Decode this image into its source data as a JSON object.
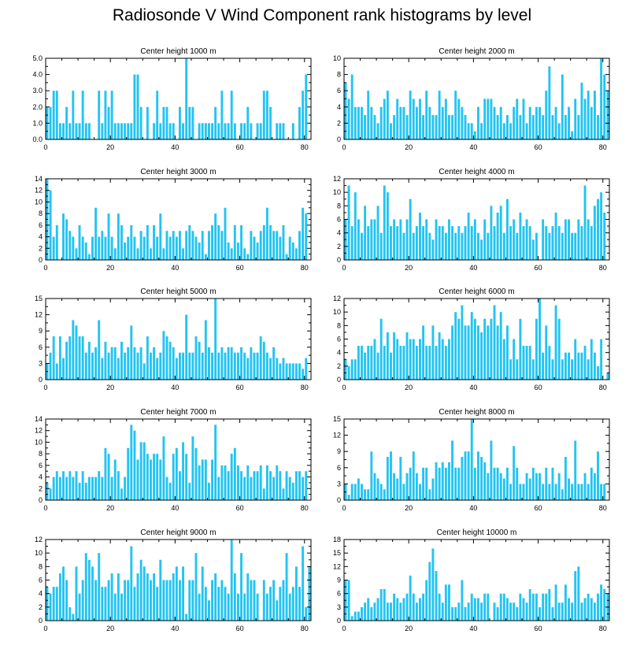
{
  "title": "Radiosonde V Wind Component rank histograms by level",
  "bar_color": "#22c4f2",
  "chart_data": [
    {
      "type": "bar",
      "title": "Center height 1000 m",
      "xlim": [
        0,
        82
      ],
      "ylim": [
        0,
        5
      ],
      "xticks": [
        "0",
        "20",
        "40",
        "60",
        "80"
      ],
      "yticks": [
        "0.0",
        "1.0",
        "2.0",
        "3.0",
        "4.0",
        "5.0"
      ],
      "values": [
        2,
        2,
        3,
        3,
        1,
        1,
        2,
        1,
        3,
        1,
        1,
        3,
        1,
        1,
        0,
        0,
        3,
        1,
        3,
        2,
        3,
        1,
        1,
        1,
        1,
        1,
        1,
        4,
        4,
        2,
        0,
        2,
        0,
        1,
        3,
        1,
        2,
        2,
        1,
        1,
        0,
        2,
        1,
        5,
        2,
        2,
        0,
        1,
        1,
        1,
        1,
        1,
        2,
        1,
        3,
        1,
        1,
        3,
        1,
        0,
        1,
        1,
        2,
        1,
        0,
        1,
        1,
        3,
        3,
        2,
        0,
        1,
        1,
        1,
        0,
        0,
        1,
        0,
        2,
        3,
        4
      ]
    },
    {
      "type": "bar",
      "title": "Center height 2000 m",
      "xlim": [
        0,
        82
      ],
      "ylim": [
        0,
        10
      ],
      "xticks": [
        "0",
        "20",
        "40",
        "60",
        "80"
      ],
      "yticks": [
        "0",
        "2",
        "4",
        "6",
        "8",
        "10"
      ],
      "values": [
        7,
        5,
        8,
        4,
        4,
        4,
        3,
        6,
        4,
        3,
        2,
        4,
        5,
        6,
        2,
        3,
        5,
        4,
        4,
        3,
        6,
        5,
        4,
        5,
        3,
        6,
        4,
        3,
        3,
        6,
        4,
        5,
        3,
        3,
        6,
        5,
        4,
        3,
        2,
        2,
        1,
        4,
        2,
        5,
        5,
        5,
        4,
        3,
        4,
        2,
        3,
        2,
        4,
        5,
        3,
        5,
        2,
        4,
        3,
        4,
        4,
        3,
        6,
        9,
        3,
        4,
        2,
        8,
        3,
        4,
        1,
        5,
        3,
        7,
        5,
        6,
        4,
        6,
        3,
        10,
        8,
        6
      ]
    },
    {
      "type": "bar",
      "title": "Center height 3000 m",
      "xlim": [
        0,
        82
      ],
      "ylim": [
        0,
        14
      ],
      "xticks": [
        "0",
        "20",
        "40",
        "60",
        "80"
      ],
      "yticks": [
        "0",
        "2",
        "4",
        "6",
        "8",
        "10",
        "12",
        "14"
      ],
      "values": [
        14,
        12,
        4,
        6,
        0,
        8,
        7,
        5,
        4,
        2,
        6,
        4,
        3,
        1,
        4,
        9,
        4,
        5,
        4,
        8,
        4,
        2,
        8,
        6,
        3,
        4,
        6,
        4,
        2,
        5,
        4,
        6,
        2,
        6,
        4,
        8,
        2,
        5,
        4,
        5,
        4,
        5,
        2,
        5,
        6,
        5,
        4,
        3,
        5,
        1,
        5,
        6,
        8,
        6,
        5,
        9,
        3,
        2,
        6,
        3,
        6,
        2,
        1,
        5,
        4,
        3,
        5,
        6,
        9,
        6,
        5,
        5,
        4,
        6,
        1,
        4,
        3,
        2,
        5,
        9,
        8
      ]
    },
    {
      "type": "bar",
      "title": "Center height 4000 m",
      "xlim": [
        0,
        82
      ],
      "ylim": [
        0,
        12
      ],
      "xticks": [
        "0",
        "20",
        "40",
        "60",
        "80"
      ],
      "yticks": [
        "0",
        "2",
        "4",
        "6",
        "8",
        "10",
        "12"
      ],
      "values": [
        6,
        11,
        5,
        10,
        6,
        4,
        8,
        5,
        6,
        6,
        8,
        4,
        11,
        10,
        5,
        6,
        5,
        6,
        4,
        6,
        9,
        4,
        5,
        7,
        5,
        6,
        4,
        3,
        6,
        5,
        5,
        4,
        6,
        5,
        4,
        5,
        4,
        5,
        7,
        5,
        6,
        4,
        3,
        6,
        4,
        8,
        5,
        7,
        8,
        4,
        9,
        5,
        6,
        4,
        7,
        5,
        6,
        5,
        3,
        4,
        0,
        6,
        5,
        4,
        5,
        7,
        5,
        4,
        6,
        6,
        4,
        4,
        6,
        5,
        11,
        6,
        5,
        8,
        9,
        10,
        7
      ]
    },
    {
      "type": "bar",
      "title": "Center height 5000 m",
      "xlim": [
        0,
        82
      ],
      "ylim": [
        0,
        15
      ],
      "xticks": [
        "0",
        "20",
        "40",
        "60",
        "80"
      ],
      "yticks": [
        "0",
        "3",
        "6",
        "9",
        "12",
        "15"
      ],
      "values": [
        3,
        5,
        8,
        3,
        8,
        4,
        7,
        8,
        11,
        10,
        8,
        8,
        5,
        7,
        5,
        6,
        11,
        4,
        7,
        5,
        6,
        6,
        4,
        7,
        5,
        6,
        10,
        6,
        5,
        6,
        3,
        8,
        5,
        6,
        4,
        5,
        9,
        8,
        7,
        6,
        4,
        5,
        5,
        12,
        5,
        5,
        8,
        7,
        5,
        11,
        6,
        5,
        15,
        5,
        6,
        5,
        6,
        6,
        5,
        5,
        6,
        5,
        4,
        6,
        5,
        5,
        8,
        7,
        5,
        4,
        6,
        4,
        3,
        4,
        3,
        3,
        3,
        3,
        3,
        2,
        4
      ]
    },
    {
      "type": "bar",
      "title": "Center height 6000 m",
      "xlim": [
        0,
        82
      ],
      "ylim": [
        0,
        12
      ],
      "xticks": [
        "0",
        "20",
        "40",
        "60",
        "80"
      ],
      "yticks": [
        "0",
        "2",
        "4",
        "6",
        "8",
        "10",
        "12"
      ],
      "values": [
        3,
        2,
        3,
        3,
        5,
        5,
        4,
        5,
        5,
        6,
        4,
        9,
        5,
        7,
        4,
        7,
        6,
        5,
        5,
        7,
        6,
        6,
        5,
        6,
        8,
        5,
        5,
        8,
        5,
        7,
        6,
        5,
        6,
        8,
        10,
        9,
        11,
        8,
        8,
        10,
        9,
        8,
        7,
        9,
        8,
        9,
        11,
        8,
        10,
        6,
        8,
        3,
        6,
        3,
        9,
        5,
        5,
        5,
        3,
        9,
        12,
        4,
        8,
        5,
        3,
        11,
        9,
        3,
        4,
        4,
        3,
        6,
        4,
        4,
        5,
        3,
        6,
        4,
        2,
        6,
        0,
        1
      ]
    },
    {
      "type": "bar",
      "title": "Center height 7000 m",
      "xlim": [
        0,
        82
      ],
      "ylim": [
        0,
        14
      ],
      "xticks": [
        "0",
        "20",
        "40",
        "60",
        "80"
      ],
      "yticks": [
        "0",
        "2",
        "4",
        "6",
        "8",
        "10",
        "12",
        "14"
      ],
      "values": [
        3,
        2,
        4,
        5,
        4,
        5,
        4,
        5,
        4,
        5,
        3,
        5,
        3,
        4,
        4,
        4,
        5,
        4,
        9,
        8,
        4,
        7,
        5,
        2,
        4,
        9,
        13,
        12,
        7,
        10,
        10,
        8,
        7,
        8,
        8,
        7,
        11,
        4,
        3,
        8,
        9,
        5,
        10,
        8,
        3,
        11,
        9,
        6,
        7,
        7,
        3,
        7,
        13,
        4,
        6,
        6,
        5,
        8,
        9,
        6,
        5,
        4,
        6,
        4,
        5,
        5,
        6,
        2,
        6,
        5,
        4,
        6,
        5,
        2,
        5,
        4,
        3,
        5,
        5,
        4,
        5
      ]
    },
    {
      "type": "bar",
      "title": "Center height 8000 m",
      "xlim": [
        0,
        82
      ],
      "ylim": [
        0,
        15
      ],
      "xticks": [
        "0",
        "20",
        "40",
        "60",
        "80"
      ],
      "yticks": [
        "0",
        "3",
        "6",
        "9",
        "12",
        "15"
      ],
      "values": [
        3,
        1,
        3,
        3,
        4,
        3,
        2,
        2,
        9,
        5,
        4,
        3,
        2,
        8,
        9,
        5,
        4,
        8,
        3,
        5,
        6,
        9,
        5,
        3,
        6,
        6,
        2,
        4,
        7,
        6,
        7,
        6,
        7,
        11,
        6,
        6,
        8,
        9,
        9,
        15,
        6,
        9,
        8,
        7,
        5,
        11,
        6,
        6,
        5,
        4,
        6,
        3,
        10,
        6,
        3,
        3,
        5,
        4,
        6,
        5,
        5,
        3,
        6,
        3,
        6,
        3,
        5,
        2,
        8,
        4,
        3,
        11,
        3,
        3,
        5,
        3,
        6,
        5,
        9,
        3,
        3
      ]
    },
    {
      "type": "bar",
      "title": "Center height 9000 m",
      "xlim": [
        0,
        82
      ],
      "ylim": [
        0,
        12
      ],
      "xticks": [
        "0",
        "20",
        "40",
        "60",
        "80"
      ],
      "yticks": [
        "0",
        "2",
        "4",
        "6",
        "8",
        "10",
        "12"
      ],
      "values": [
        5,
        4,
        5,
        5,
        7,
        8,
        6,
        2,
        1,
        8,
        4,
        6,
        10,
        9,
        8,
        6,
        10,
        5,
        5,
        6,
        7,
        4,
        7,
        4,
        6,
        6,
        11,
        5,
        7,
        9,
        8,
        7,
        6,
        7,
        5,
        9,
        6,
        6,
        6,
        7,
        8,
        6,
        8,
        1,
        6,
        6,
        10,
        4,
        8,
        5,
        3,
        6,
        7,
        5,
        6,
        5,
        4,
        12,
        7,
        4,
        10,
        4,
        7,
        6,
        6,
        4,
        0,
        6,
        4,
        5,
        6,
        3,
        5,
        6,
        10,
        4,
        5,
        8,
        5,
        11,
        2,
        8
      ]
    },
    {
      "type": "bar",
      "title": "Center height 10000 m",
      "xlim": [
        0,
        82
      ],
      "ylim": [
        0,
        18
      ],
      "xticks": [
        "0",
        "20",
        "40",
        "60",
        "80"
      ],
      "yticks": [
        "0",
        "3",
        "6",
        "9",
        "12",
        "15",
        "18"
      ],
      "values": [
        9,
        9,
        1,
        2,
        2,
        3,
        4,
        5,
        3,
        4,
        5,
        7,
        7,
        4,
        4,
        6,
        5,
        4,
        5,
        6,
        10,
        6,
        4,
        5,
        6,
        9,
        13,
        16,
        11,
        6,
        4,
        8,
        8,
        3,
        3,
        4,
        9,
        3,
        4,
        6,
        5,
        5,
        4,
        6,
        6,
        0,
        4,
        3,
        6,
        6,
        5,
        4,
        4,
        3,
        6,
        5,
        4,
        7,
        6,
        6,
        3,
        6,
        6,
        7,
        3,
        8,
        4,
        4,
        8,
        5,
        4,
        11,
        12,
        4,
        5,
        6,
        5,
        4,
        6,
        8,
        7,
        6
      ]
    }
  ]
}
